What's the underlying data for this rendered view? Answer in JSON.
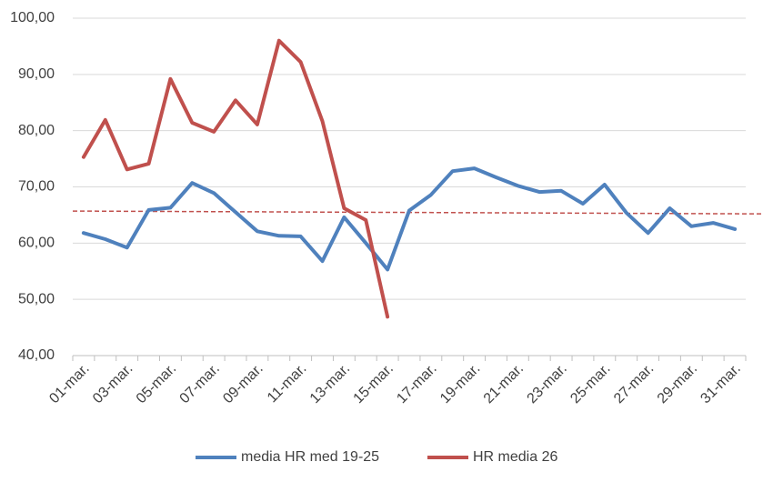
{
  "chart_data": {
    "type": "line",
    "categories": [
      "01-mar.",
      null,
      "03-mar.",
      null,
      "05-mar.",
      null,
      "07-mar.",
      null,
      "09-mar.",
      null,
      "11-mar.",
      null,
      "13-mar.",
      null,
      "15-mar.",
      null,
      "17-mar.",
      null,
      "19-mar.",
      null,
      "21-mar.",
      null,
      "23-mar.",
      null,
      "25-mar.",
      null,
      "27-mar.",
      null,
      "29-mar.",
      null,
      "31-mar."
    ],
    "series": [
      {
        "name": "media HR med 19-25",
        "color": "#4f81bd",
        "values": [
          61.8,
          60.7,
          59.2,
          65.9,
          66.3,
          70.7,
          68.9,
          65.5,
          62.1,
          61.3,
          61.2,
          56.8,
          64.6,
          60.0,
          55.3,
          65.8,
          68.6,
          72.8,
          73.3,
          71.7,
          70.2,
          69.1,
          69.3,
          67.0,
          70.4,
          65.4,
          61.8,
          66.2,
          63.0,
          63.6,
          62.5
        ]
      },
      {
        "name": "HR media 26",
        "color": "#c0504d",
        "values": [
          75.3,
          81.9,
          73.1,
          74.1,
          89.2,
          81.4,
          79.8,
          85.4,
          81.1,
          96.0,
          92.2,
          81.7,
          66.2,
          64.1,
          46.9,
          null,
          null,
          null,
          null,
          null,
          null,
          null,
          null,
          null,
          null,
          null,
          null,
          null,
          null,
          null,
          null
        ]
      }
    ],
    "trendline": {
      "color": "#c0504d",
      "values": [
        65.7,
        65.2
      ]
    },
    "ylim": [
      40,
      100
    ],
    "yticks": [
      {
        "value": 40,
        "label": "40,00"
      },
      {
        "value": 50,
        "label": "50,00"
      },
      {
        "value": 60,
        "label": "60,00"
      },
      {
        "value": 70,
        "label": "70,00"
      },
      {
        "value": 80,
        "label": "80,00"
      },
      {
        "value": 90,
        "label": "90,00"
      },
      {
        "value": 100,
        "label": "100,00"
      }
    ],
    "grid": true,
    "legend": "bottom"
  }
}
